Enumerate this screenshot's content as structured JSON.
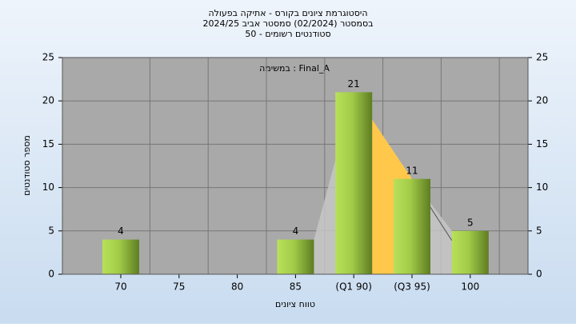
{
  "chart_data": {
    "type": "bar",
    "title": "היסטוגרמת ציונים בקורס - אתיקה בפעולה",
    "subtitle": "בסמסטר  (02/2024)  סמסטר אביב 2024/25",
    "subtitle2": "סטודנטים רשומים - 50",
    "annotation": "במשימה : Final_A",
    "x_label": "טווח ציונים",
    "y_label": "מספר סטודנטים",
    "categories": [
      "70",
      "75",
      "80",
      "85",
      "(Q1 90)",
      "(Q3 95)",
      "100"
    ],
    "values": [
      4,
      null,
      null,
      4,
      21,
      11,
      5
    ],
    "color": "#8fbf3a",
    "ylim": [
      0,
      25
    ],
    "yticks": [
      0,
      5,
      10,
      15,
      20,
      25
    ],
    "y2lim": [
      0,
      25
    ],
    "y2ticks": [
      0,
      5,
      10,
      15,
      20,
      25
    ],
    "grid": true
  }
}
